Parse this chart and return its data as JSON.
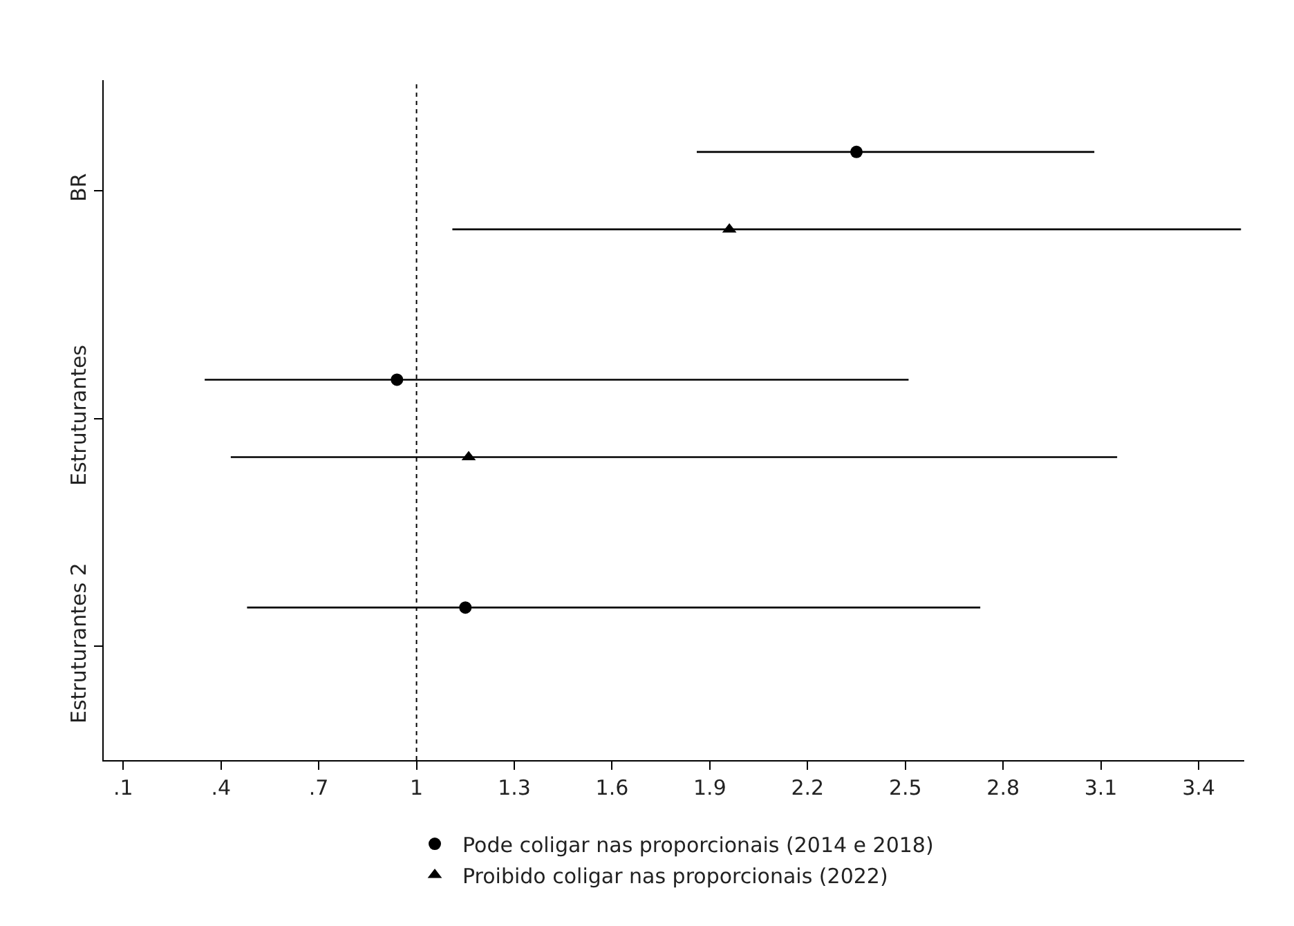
{
  "chart_data": {
    "type": "scatter",
    "orientation": "horizontal",
    "categories": [
      "BR",
      "Estruturantes",
      "Estruturantes 2"
    ],
    "series": [
      {
        "name": "Pode coligar nas proporcionais (2014 e 2018)",
        "color": "#000000",
        "marker": "circle",
        "values": [
          2.35,
          0.94,
          1.15
        ],
        "errors": [
          [
            1.86,
            3.08
          ],
          [
            0.35,
            2.51
          ],
          [
            0.48,
            2.73
          ]
        ]
      },
      {
        "name": "Proibido coligar nas proporcionais (2022)",
        "color": "#000000",
        "marker": "triangle",
        "values": [
          1.96,
          1.16,
          null
        ],
        "errors": [
          [
            1.11,
            3.53
          ],
          [
            0.43,
            3.15
          ],
          null
        ]
      }
    ],
    "xlim": [
      0.04,
      3.54
    ],
    "xticks": [
      {
        "value": 0.1,
        "label": ".1"
      },
      {
        "value": 0.4,
        "label": ".4"
      },
      {
        "value": 0.7,
        "label": ".7"
      },
      1,
      1.3,
      1.6,
      1.9,
      2.2,
      2.5,
      2.8,
      3.1,
      3.4
    ],
    "ref_lines": [
      {
        "axis": "x",
        "value": 1,
        "line_style": "dotted",
        "color": "#000000"
      }
    ],
    "legend": "bottom",
    "grid": false
  }
}
